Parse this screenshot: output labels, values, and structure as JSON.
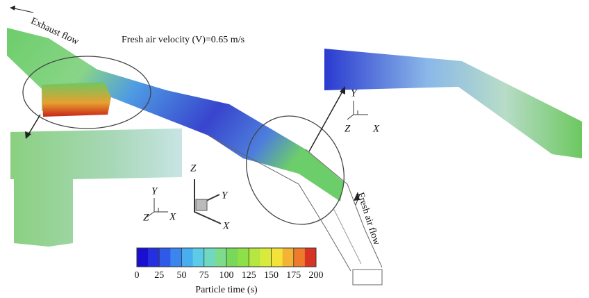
{
  "annotations": {
    "exhaust": "Exhaust flow",
    "velocity": "Fresh air velocity (V)=0.65 m/s",
    "fresh": "Fresh air flow"
  },
  "triads": [
    {
      "y": "Y",
      "z": "Z",
      "x": "X"
    },
    {
      "z": "Z",
      "y": "Y",
      "x": "X"
    },
    {
      "y": "Y",
      "z": "Z",
      "x": "X"
    }
  ],
  "colorbar": {
    "label": "Particle time (s)",
    "range": [
      0,
      200
    ],
    "ticks": [
      0,
      25,
      50,
      75,
      100,
      125,
      150,
      175,
      200
    ],
    "colors": [
      "#1a0fd0",
      "#2430e0",
      "#2f5ae8",
      "#3a86ee",
      "#49aef0",
      "#5ccbe6",
      "#6fd8c0",
      "#7ddc8c",
      "#78d85a",
      "#8ee048",
      "#b6e640",
      "#d8ea3c",
      "#f2e23a",
      "#f4b334",
      "#ee7a2c",
      "#d83424"
    ]
  }
}
